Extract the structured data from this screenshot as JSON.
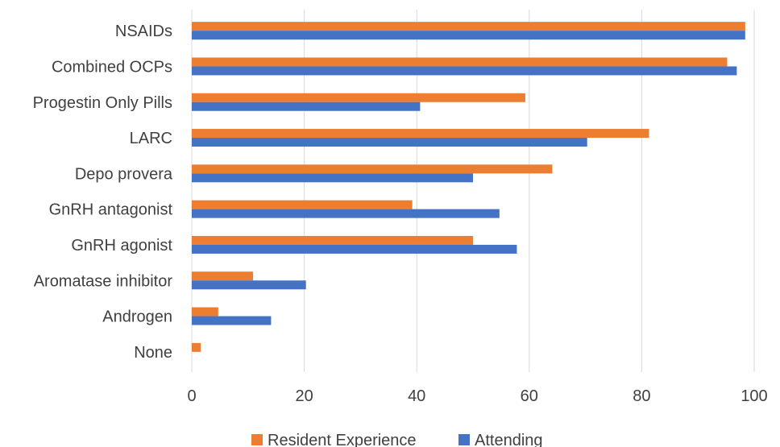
{
  "chart_data": {
    "type": "bar",
    "orientation": "horizontal",
    "categories": [
      "NSAIDs",
      "Combined OCPs",
      "Progestin Only Pills",
      "LARC",
      "Depo provera",
      "GnRH antagonist",
      "GnRH agonist",
      "Aromatase inhibitor",
      "Androgen",
      "None"
    ],
    "series": [
      {
        "name": "Resident Experience",
        "color": "#ED7D31",
        "values": [
          98.4,
          95.2,
          59.3,
          81.3,
          64.1,
          39.2,
          50.0,
          10.9,
          4.7,
          1.6
        ]
      },
      {
        "name": "Attending",
        "color": "#4472C4",
        "values": [
          98.4,
          96.9,
          40.6,
          70.3,
          50.0,
          54.7,
          57.8,
          20.3,
          14.1,
          0
        ]
      }
    ],
    "xlim": [
      0,
      100
    ],
    "xticks": [
      "0",
      "20",
      "40",
      "60",
      "80",
      "100"
    ],
    "title": "",
    "xlabel": "",
    "ylabel": "",
    "grid": "vertical",
    "legend_position": "bottom"
  }
}
